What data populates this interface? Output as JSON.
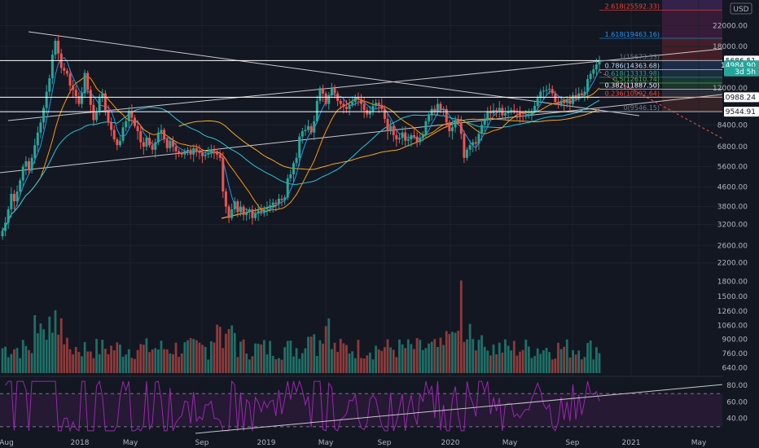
{
  "currency": "USD",
  "colors": {
    "background": "#131722",
    "up": "#26a69a",
    "down": "#ef5350",
    "ma_fast": "#2196f3",
    "ma_mid": "#ff9800",
    "ma_slow_teal": "#26c6da",
    "ma_slow_orange": "#f9a825",
    "rsi": "#9c27b0"
  },
  "chart_data": {
    "type": "candlestick",
    "title": "",
    "price_axis": {
      "scale": "log",
      "ticks": [
        "22000.00",
        "18000.00",
        "12000.00",
        "8400.00",
        "6800.00",
        "5600.00",
        "4600.00",
        "3800.00",
        "3200.00",
        "2600.00",
        "2200.00"
      ],
      "range": [
        1950,
        26500
      ]
    },
    "volume_axis": {
      "ticks": [
        "1800.00",
        "1500.00",
        "1260.00",
        "1060.00",
        "900.00",
        "760.00",
        "640.00"
      ]
    },
    "rsi_axis": {
      "ticks": [
        "80.00",
        "60.00",
        "40.00"
      ],
      "bands": [
        30,
        70
      ]
    },
    "x_axis": {
      "ticks": [
        "Aug",
        "2018",
        "May",
        "Sep",
        "2019",
        "May",
        "Sep",
        "2020",
        "May",
        "Sep",
        "2021",
        "May"
      ]
    },
    "price_tags": [
      {
        "label": "15686.51",
        "value": 15686.51,
        "style": "light"
      },
      {
        "label": "14984.90",
        "value": 14984.9,
        "style": "green"
      },
      {
        "label": "3d 5h",
        "value": 14100,
        "style": "green"
      },
      {
        "label": "10988.24",
        "value": 10988.24,
        "style": "light"
      },
      {
        "label": "9544.91",
        "value": 9544.91,
        "style": "light"
      }
    ],
    "fib_levels": [
      {
        "label": "2.618(25592.33)",
        "value": 25592.33,
        "color": "#f44336"
      },
      {
        "label": "1.618(19463.16)",
        "value": 19463.16,
        "color": "#2196f3"
      },
      {
        "label": "1(15673.33)",
        "value": 15673.33,
        "color": "#787b86"
      },
      {
        "label": "0.786(14363.68)",
        "value": 14363.68,
        "color": "#bbdefb"
      },
      {
        "label": "0.618(13333.98)",
        "value": 13333.98,
        "color": "#26a69a"
      },
      {
        "label": "0.5(12610.74)",
        "value": 12610.74,
        "color": "#4caf50"
      },
      {
        "label": "0.382(11887.50)",
        "value": 11887.5,
        "color": "#ffffff"
      },
      {
        "label": "0.236(10992.64)",
        "value": 10992.64,
        "color": "#f44336"
      },
      {
        "label": "0(9546.15)",
        "value": 9546.15,
        "color": "#787b86"
      }
    ],
    "series_close": [
      3000,
      3250,
      3700,
      4300,
      4000,
      4400,
      4900,
      5600,
      5900,
      5400,
      6100,
      6900,
      7800,
      8600,
      9900,
      11600,
      13200,
      16600,
      19000,
      16800,
      14600,
      14200,
      13800,
      12300,
      11800,
      11100,
      10300,
      11400,
      13900,
      11800,
      10200,
      8800,
      9500,
      10900,
      11400,
      9700,
      8600,
      8000,
      7300,
      6900,
      7200,
      8200,
      8700,
      9600,
      9000,
      8300,
      7900,
      7100,
      6800,
      7400,
      6900,
      6600,
      7100,
      7800,
      8000,
      7300,
      6700,
      7200,
      6800,
      6500,
      6400,
      6300,
      6500,
      6600,
      6300,
      6700,
      6500,
      6400,
      6200,
      6300,
      6400,
      6600,
      6500,
      6300,
      6100,
      4400,
      3800,
      3400,
      3700,
      4000,
      3600,
      3800,
      3500,
      3600,
      3700,
      3400,
      3550,
      3650,
      3600,
      3700,
      3750,
      3850,
      3950,
      3900,
      4100,
      4050,
      4150,
      5000,
      5200,
      5800,
      6100,
      7500,
      7900,
      8000,
      8300,
      7800,
      8700,
      10600,
      12000,
      11400,
      10300,
      11200,
      12000,
      11400,
      10600,
      10300,
      10000,
      9800,
      10200,
      10500,
      11000,
      10800,
      10300,
      9700,
      9300,
      9600,
      10100,
      10400,
      10200,
      9800,
      8900,
      7900,
      8300,
      7600,
      7300,
      7400,
      7800,
      7200,
      7300,
      7600,
      7500,
      7100,
      7400,
      7600,
      8700,
      9200,
      9800,
      9500,
      10300,
      9700,
      9800,
      8600,
      7900,
      8200,
      8800,
      8600,
      7700,
      6100,
      6600,
      6900,
      7100,
      7000,
      7700,
      8400,
      8800,
      9600,
      9400,
      9700,
      9600,
      9900,
      9200,
      9400,
      9600,
      9700,
      9600,
      9500,
      9200,
      9100,
      9200,
      9300,
      9600,
      10100,
      10900,
      11600,
      11700,
      11800,
      11900,
      11400,
      10500,
      10200,
      10600,
      10400,
      10700,
      10300,
      11200,
      10800,
      11400,
      11200,
      11600,
      13100,
      13800,
      14400,
      15100,
      15500
    ]
  }
}
